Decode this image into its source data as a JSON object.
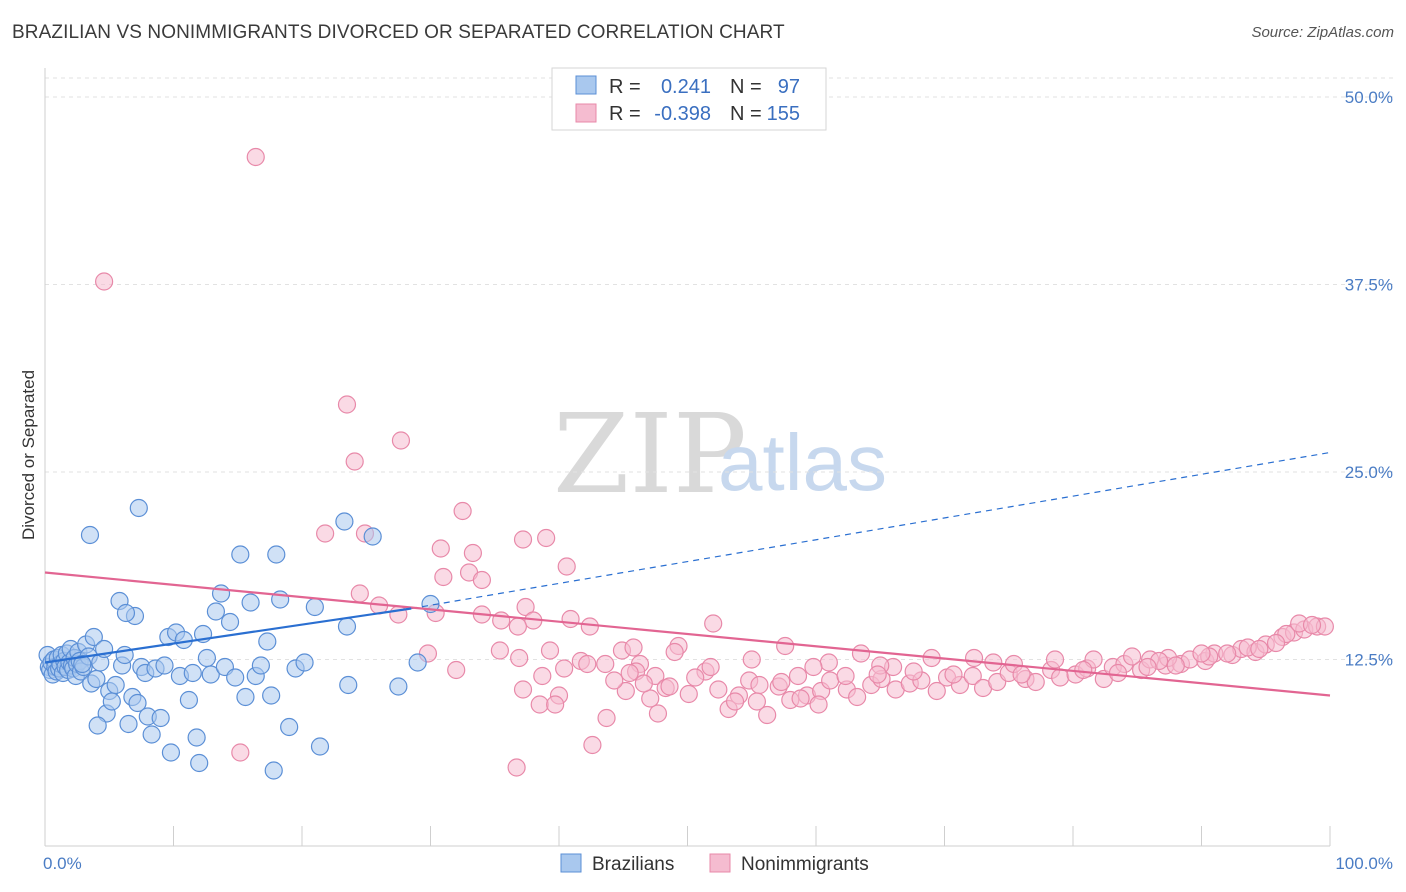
{
  "header": {
    "title": "BRAZILIAN VS NONIMMIGRANTS DIVORCED OR SEPARATED CORRELATION CHART",
    "source": "Source: ZipAtlas.com"
  },
  "watermark": {
    "zip": "ZIP",
    "atlas": "atlas"
  },
  "legend_top": {
    "rows": [
      {
        "r_label": "R =",
        "r_value": "0.241",
        "n_label": "N =",
        "n_value": "97"
      },
      {
        "r_label": "R =",
        "r_value": "-0.398",
        "n_label": "N =",
        "n_value": "155"
      }
    ]
  },
  "legend_bottom": {
    "items": [
      "Brazilians",
      "Nonimmigrants"
    ]
  },
  "colors": {
    "blue_fill": "#a9c8ee",
    "blue_stroke": "#5b8fd6",
    "blue_line": "#2a6fd1",
    "pink_fill": "#f5bcd0",
    "pink_stroke": "#e889a9",
    "pink_line": "#e26592",
    "axis_text": "#4a7cc4"
  },
  "chart_data": {
    "type": "scatter",
    "title": "BRAZILIAN VS NONIMMIGRANTS DIVORCED OR SEPARATED CORRELATION CHART",
    "xlabel": "",
    "ylabel": "Divorced or Separated",
    "xlim": [
      0,
      100
    ],
    "ylim": [
      0,
      52
    ],
    "x_tick_labels": [
      "0.0%",
      "100.0%"
    ],
    "y_ticks": [
      12.5,
      25.0,
      37.5,
      50.0
    ],
    "y_tick_labels": [
      "12.5%",
      "25.0%",
      "37.5%",
      "50.0%"
    ],
    "grid": "horizontal dashed",
    "legend_position": "top-center",
    "series": [
      {
        "name": "Brazilians",
        "r": 0.241,
        "n": 97,
        "trend": {
          "x": [
            0,
            28.5
          ],
          "y": [
            12.3,
            15.9
          ],
          "dashed_to": [
            100,
            26.3
          ]
        },
        "points": [
          [
            0.2,
            12.8
          ],
          [
            0.3,
            12.0
          ],
          [
            0.4,
            11.8
          ],
          [
            0.5,
            12.3
          ],
          [
            0.6,
            11.5
          ],
          [
            0.7,
            12.5
          ],
          [
            0.8,
            12.0
          ],
          [
            0.9,
            11.7
          ],
          [
            1.0,
            12.6
          ],
          [
            1.1,
            11.9
          ],
          [
            1.2,
            12.2
          ],
          [
            1.3,
            12.8
          ],
          [
            1.4,
            11.6
          ],
          [
            1.5,
            12.4
          ],
          [
            1.6,
            12.0
          ],
          [
            1.7,
            12.9
          ],
          [
            1.8,
            11.8
          ],
          [
            1.9,
            12.3
          ],
          [
            2.0,
            13.2
          ],
          [
            2.1,
            12.1
          ],
          [
            2.2,
            11.9
          ],
          [
            2.3,
            12.6
          ],
          [
            2.4,
            11.4
          ],
          [
            2.5,
            12.2
          ],
          [
            2.6,
            13.0
          ],
          [
            2.7,
            12.4
          ],
          [
            2.8,
            11.7
          ],
          [
            3.0,
            12.0
          ],
          [
            3.2,
            13.5
          ],
          [
            3.4,
            12.7
          ],
          [
            3.6,
            10.9
          ],
          [
            3.8,
            14.0
          ],
          [
            4.0,
            11.2
          ],
          [
            4.3,
            12.3
          ],
          [
            4.6,
            13.2
          ],
          [
            4.8,
            8.9
          ],
          [
            5.0,
            10.4
          ],
          [
            5.2,
            9.7
          ],
          [
            5.5,
            10.8
          ],
          [
            5.8,
            16.4
          ],
          [
            6.0,
            12.1
          ],
          [
            6.2,
            12.8
          ],
          [
            6.5,
            8.2
          ],
          [
            6.8,
            10.0
          ],
          [
            7.0,
            15.4
          ],
          [
            7.2,
            9.6
          ],
          [
            7.5,
            12.0
          ],
          [
            7.8,
            11.6
          ],
          [
            8.0,
            8.7
          ],
          [
            8.3,
            7.5
          ],
          [
            8.6,
            11.9
          ],
          [
            9.0,
            8.6
          ],
          [
            9.3,
            12.1
          ],
          [
            9.6,
            14.0
          ],
          [
            9.8,
            6.3
          ],
          [
            10.2,
            14.3
          ],
          [
            10.5,
            11.4
          ],
          [
            10.8,
            13.8
          ],
          [
            11.2,
            9.8
          ],
          [
            11.5,
            11.6
          ],
          [
            11.8,
            7.3
          ],
          [
            12.0,
            5.6
          ],
          [
            12.3,
            14.2
          ],
          [
            12.6,
            12.6
          ],
          [
            12.9,
            11.5
          ],
          [
            13.3,
            15.7
          ],
          [
            13.7,
            16.9
          ],
          [
            14.0,
            12.0
          ],
          [
            14.4,
            15.0
          ],
          [
            14.8,
            11.3
          ],
          [
            15.2,
            19.5
          ],
          [
            15.6,
            10.0
          ],
          [
            16.0,
            16.3
          ],
          [
            16.4,
            11.4
          ],
          [
            16.8,
            12.1
          ],
          [
            17.3,
            13.7
          ],
          [
            17.6,
            10.1
          ],
          [
            17.8,
            5.1
          ],
          [
            18.0,
            19.5
          ],
          [
            18.3,
            16.5
          ],
          [
            19.0,
            8.0
          ],
          [
            19.5,
            11.9
          ],
          [
            20.2,
            12.3
          ],
          [
            21.0,
            16.0
          ],
          [
            21.4,
            6.7
          ],
          [
            23.3,
            21.7
          ],
          [
            23.5,
            14.7
          ],
          [
            23.6,
            10.8
          ],
          [
            25.5,
            20.7
          ],
          [
            27.5,
            10.7
          ],
          [
            29.0,
            12.3
          ],
          [
            30.0,
            16.2
          ],
          [
            7.3,
            22.6
          ],
          [
            3.5,
            20.8
          ],
          [
            6.3,
            15.6
          ],
          [
            4.1,
            8.1
          ],
          [
            2.9,
            12.2
          ]
        ]
      },
      {
        "name": "Nonimmigrants",
        "r": -0.398,
        "n": 155,
        "trend": {
          "x": [
            0,
            100
          ],
          "y": [
            18.3,
            10.1
          ]
        },
        "points": [
          [
            16.4,
            46.0
          ],
          [
            4.6,
            37.7
          ],
          [
            23.5,
            29.5
          ],
          [
            27.7,
            27.1
          ],
          [
            24.1,
            25.7
          ],
          [
            32.5,
            22.4
          ],
          [
            21.8,
            20.9
          ],
          [
            24.9,
            20.9
          ],
          [
            30.8,
            19.9
          ],
          [
            33.3,
            19.6
          ],
          [
            39.0,
            20.6
          ],
          [
            37.2,
            20.5
          ],
          [
            40.6,
            18.7
          ],
          [
            33.0,
            18.3
          ],
          [
            31.0,
            18.0
          ],
          [
            34.0,
            17.8
          ],
          [
            37.4,
            16.0
          ],
          [
            38.0,
            15.1
          ],
          [
            40.9,
            15.2
          ],
          [
            34.0,
            15.5
          ],
          [
            27.5,
            15.5
          ],
          [
            30.4,
            15.6
          ],
          [
            26.0,
            16.1
          ],
          [
            35.5,
            15.1
          ],
          [
            36.8,
            14.7
          ],
          [
            42.4,
            14.7
          ],
          [
            49.3,
            13.4
          ],
          [
            36.9,
            12.6
          ],
          [
            38.7,
            11.4
          ],
          [
            40.4,
            11.9
          ],
          [
            43.6,
            12.2
          ],
          [
            46.3,
            12.2
          ],
          [
            37.2,
            10.5
          ],
          [
            38.5,
            9.5
          ],
          [
            46.0,
            11.7
          ],
          [
            44.9,
            13.1
          ],
          [
            35.4,
            13.1
          ],
          [
            39.3,
            13.1
          ],
          [
            47.5,
            11.4
          ],
          [
            41.7,
            12.4
          ],
          [
            42.2,
            12.2
          ],
          [
            45.5,
            11.6
          ],
          [
            48.3,
            10.6
          ],
          [
            50.1,
            10.2
          ],
          [
            51.4,
            11.7
          ],
          [
            52.4,
            10.5
          ],
          [
            53.2,
            9.2
          ],
          [
            54.0,
            10.1
          ],
          [
            54.8,
            11.1
          ],
          [
            55.6,
            10.8
          ],
          [
            56.2,
            8.8
          ],
          [
            57.1,
            10.7
          ],
          [
            58.0,
            9.8
          ],
          [
            58.6,
            11.4
          ],
          [
            59.3,
            10.1
          ],
          [
            60.4,
            10.4
          ],
          [
            61.1,
            11.1
          ],
          [
            62.4,
            10.5
          ],
          [
            63.2,
            10.0
          ],
          [
            64.3,
            10.8
          ],
          [
            65.1,
            11.2
          ],
          [
            66.2,
            10.5
          ],
          [
            67.3,
            10.9
          ],
          [
            68.2,
            11.1
          ],
          [
            69.4,
            10.4
          ],
          [
            70.2,
            11.3
          ],
          [
            71.2,
            10.8
          ],
          [
            72.2,
            11.4
          ],
          [
            73.0,
            10.6
          ],
          [
            74.1,
            11.0
          ],
          [
            75.0,
            11.6
          ],
          [
            76.3,
            11.2
          ],
          [
            77.1,
            11.0
          ],
          [
            78.3,
            11.8
          ],
          [
            79.0,
            11.3
          ],
          [
            80.2,
            11.5
          ],
          [
            81.1,
            11.9
          ],
          [
            82.4,
            11.2
          ],
          [
            83.1,
            12.0
          ],
          [
            84.0,
            12.2
          ],
          [
            85.3,
            11.8
          ],
          [
            86.0,
            12.5
          ],
          [
            87.2,
            12.1
          ],
          [
            88.4,
            12.2
          ],
          [
            89.1,
            12.5
          ],
          [
            90.3,
            12.4
          ],
          [
            91.0,
            12.9
          ],
          [
            92.4,
            12.8
          ],
          [
            93.1,
            13.2
          ],
          [
            94.2,
            13.0
          ],
          [
            95.0,
            13.5
          ],
          [
            96.3,
            14.0
          ],
          [
            97.2,
            14.3
          ],
          [
            98.0,
            14.5
          ],
          [
            99.0,
            14.7
          ],
          [
            99.6,
            14.7
          ],
          [
            52.0,
            14.9
          ],
          [
            55.0,
            12.5
          ],
          [
            57.6,
            13.4
          ],
          [
            61.0,
            12.3
          ],
          [
            63.5,
            12.9
          ],
          [
            66.0,
            12.0
          ],
          [
            69.0,
            12.6
          ],
          [
            72.3,
            12.6
          ],
          [
            75.4,
            12.2
          ],
          [
            78.6,
            12.5
          ],
          [
            81.6,
            12.5
          ],
          [
            84.6,
            12.7
          ],
          [
            87.4,
            12.6
          ],
          [
            90.6,
            12.7
          ],
          [
            93.6,
            13.3
          ],
          [
            96.6,
            14.2
          ],
          [
            24.5,
            16.9
          ],
          [
            29.8,
            12.9
          ],
          [
            32.0,
            11.8
          ],
          [
            43.7,
            8.6
          ],
          [
            45.2,
            10.4
          ],
          [
            47.7,
            8.9
          ],
          [
            40.0,
            10.1
          ],
          [
            49.0,
            13.0
          ],
          [
            60.2,
            9.5
          ],
          [
            58.8,
            9.9
          ],
          [
            65.0,
            12.1
          ],
          [
            76.0,
            11.5
          ],
          [
            86.7,
            12.4
          ],
          [
            94.5,
            13.2
          ],
          [
            97.6,
            14.9
          ],
          [
            90.0,
            12.9
          ],
          [
            83.5,
            11.6
          ],
          [
            80.8,
            11.8
          ],
          [
            73.8,
            12.3
          ],
          [
            70.7,
            11.5
          ],
          [
            67.6,
            11.7
          ],
          [
            64.8,
            11.5
          ],
          [
            62.3,
            11.4
          ],
          [
            59.8,
            12.0
          ],
          [
            57.3,
            11.0
          ],
          [
            55.4,
            9.7
          ],
          [
            53.7,
            9.7
          ],
          [
            51.8,
            12.0
          ],
          [
            50.6,
            11.3
          ],
          [
            48.6,
            10.7
          ],
          [
            47.1,
            9.9
          ],
          [
            46.6,
            10.9
          ],
          [
            45.8,
            13.3
          ],
          [
            44.3,
            11.1
          ],
          [
            42.6,
            6.8
          ],
          [
            39.7,
            9.5
          ],
          [
            36.7,
            5.3
          ],
          [
            15.2,
            6.3
          ],
          [
            92.0,
            12.9
          ],
          [
            95.8,
            13.6
          ],
          [
            98.6,
            14.8
          ],
          [
            88.0,
            12.1
          ],
          [
            85.8,
            12.0
          ]
        ]
      }
    ]
  }
}
